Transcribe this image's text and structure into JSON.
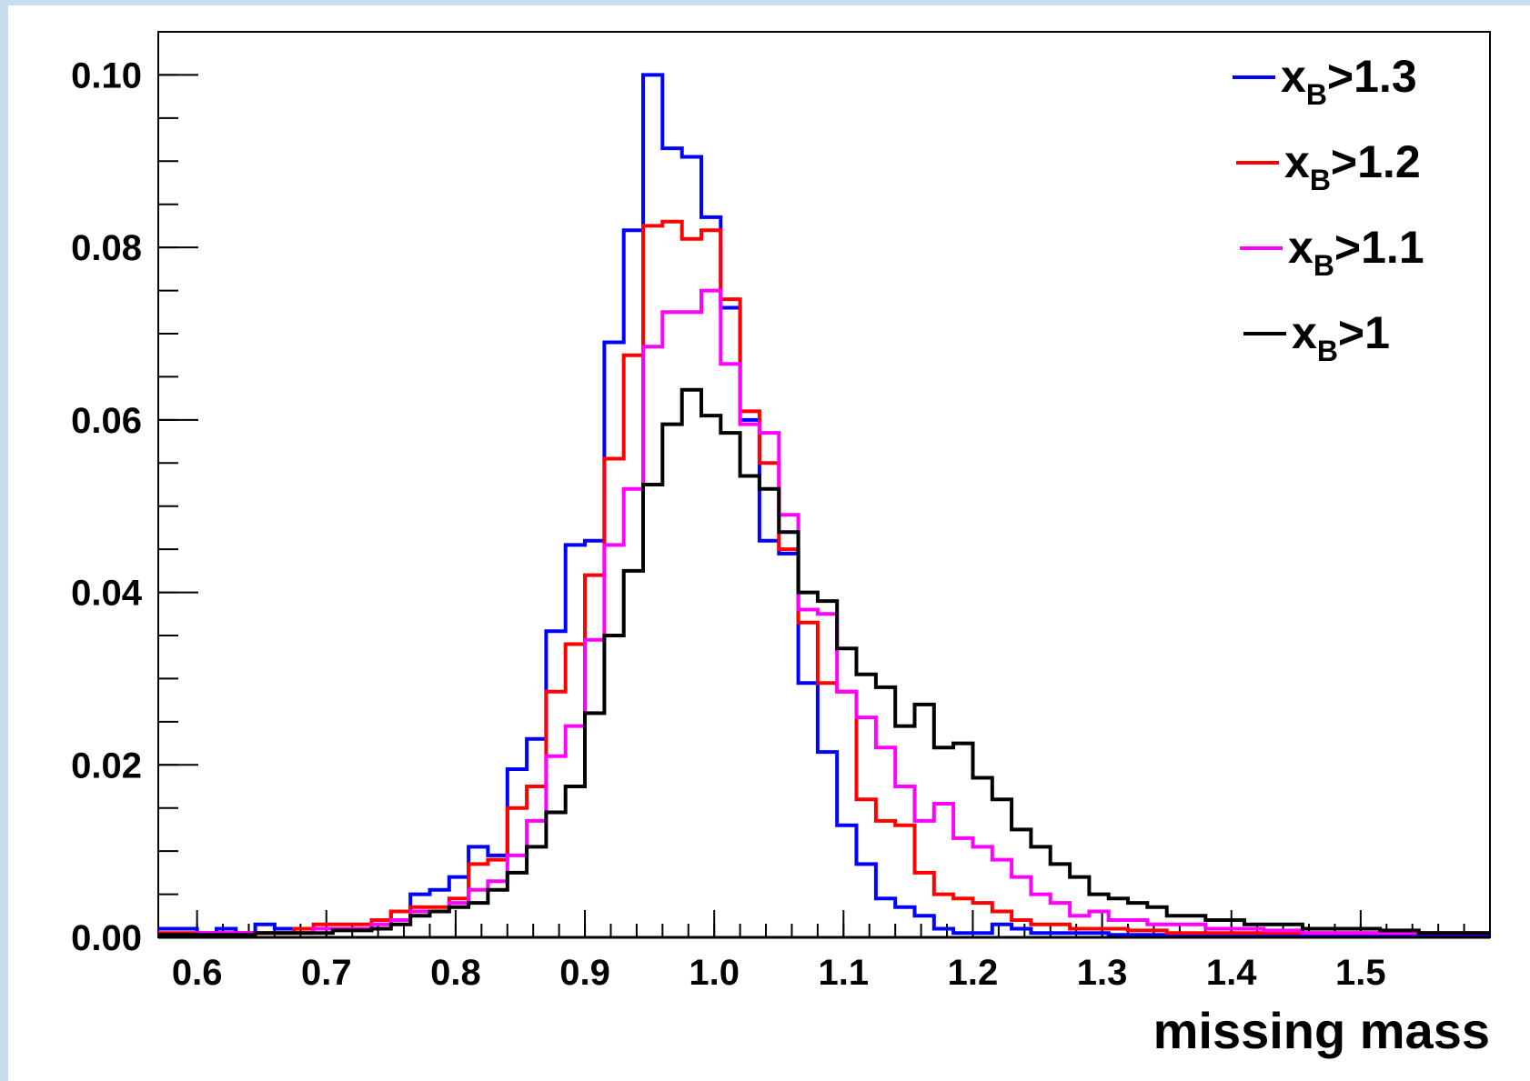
{
  "chart_data": {
    "type": "line",
    "title": "",
    "xlabel": "missing mass",
    "ylabel": "",
    "xlim": [
      0.57,
      1.6
    ],
    "ylim": [
      0.0,
      0.105
    ],
    "x_ticks": [
      "0.6",
      "0.7",
      "0.8",
      "0.9",
      "1.0",
      "1.1",
      "1.2",
      "1.3",
      "1.4",
      "1.5"
    ],
    "y_ticks": [
      "0.00",
      "0.02",
      "0.04",
      "0.06",
      "0.08",
      "0.10"
    ],
    "grid": false,
    "legend_position": "top-right",
    "bin_width": 0.015,
    "bin_start": 0.57,
    "series": [
      {
        "name": "x_B>1.3",
        "legend_main": "x",
        "legend_sub": "B",
        "legend_tail": ">1.3",
        "color": "#0000ff",
        "values": [
          0.001,
          0.001,
          0.0005,
          0.001,
          0.0005,
          0.0015,
          0.001,
          0.001,
          0.001,
          0.001,
          0.001,
          0.002,
          0.003,
          0.005,
          0.0055,
          0.007,
          0.0105,
          0.0095,
          0.0195,
          0.023,
          0.0355,
          0.0455,
          0.046,
          0.069,
          0.082,
          0.1,
          0.0915,
          0.0905,
          0.0835,
          0.073,
          0.06,
          0.046,
          0.0445,
          0.0295,
          0.0215,
          0.013,
          0.0085,
          0.0045,
          0.0035,
          0.0025,
          0.001,
          0.0005,
          0.0005,
          0.0015,
          0.001,
          0.0005,
          0.0005,
          0.0005,
          0.0005,
          0.0003,
          0.0003,
          0.0003,
          0.0003,
          0.0003,
          0.0003,
          0.0003,
          0.0003,
          0.0003,
          0.0003,
          0.0003,
          0.0003,
          0.0003,
          0.0003,
          0.0003,
          0.0003,
          0.0003,
          0.0003,
          0.0003,
          0.0003
        ]
      },
      {
        "name": "x_B>1.2",
        "legend_main": "x",
        "legend_sub": "B",
        "legend_tail": ">1.2",
        "color": "#ff0000",
        "values": [
          0.0005,
          0.0005,
          0.0005,
          0.0005,
          0.0005,
          0.0005,
          0.0005,
          0.001,
          0.0015,
          0.0015,
          0.0015,
          0.002,
          0.003,
          0.0035,
          0.0035,
          0.0045,
          0.0085,
          0.009,
          0.015,
          0.0175,
          0.0285,
          0.034,
          0.042,
          0.0555,
          0.0675,
          0.0825,
          0.083,
          0.081,
          0.082,
          0.074,
          0.061,
          0.055,
          0.045,
          0.0365,
          0.0295,
          0.0285,
          0.016,
          0.0135,
          0.013,
          0.0075,
          0.005,
          0.0045,
          0.004,
          0.003,
          0.002,
          0.0015,
          0.0015,
          0.001,
          0.001,
          0.001,
          0.0008,
          0.0008,
          0.0005,
          0.0005,
          0.0005,
          0.0005,
          0.0005,
          0.0005,
          0.0005,
          0.0005,
          0.0005,
          0.0005,
          0.0005,
          0.0005,
          0.0005,
          0.0005,
          0.0005,
          0.0005,
          0.0005
        ]
      },
      {
        "name": "x_B>1.1",
        "legend_main": "x",
        "legend_sub": "B",
        "legend_tail": ">1.1",
        "color": "#ff00ff",
        "values": [
          0.0003,
          0.0003,
          0.0005,
          0.0005,
          0.0005,
          0.0005,
          0.0005,
          0.0005,
          0.001,
          0.001,
          0.001,
          0.0015,
          0.002,
          0.003,
          0.003,
          0.004,
          0.0055,
          0.0065,
          0.0095,
          0.0135,
          0.021,
          0.0245,
          0.0345,
          0.0455,
          0.052,
          0.0685,
          0.0725,
          0.0725,
          0.075,
          0.0665,
          0.0595,
          0.0585,
          0.049,
          0.038,
          0.0375,
          0.0285,
          0.0255,
          0.022,
          0.0175,
          0.0135,
          0.0155,
          0.0115,
          0.0105,
          0.009,
          0.007,
          0.005,
          0.004,
          0.0025,
          0.003,
          0.002,
          0.002,
          0.0015,
          0.0015,
          0.0015,
          0.001,
          0.001,
          0.001,
          0.0008,
          0.0008,
          0.0005,
          0.0005,
          0.0005,
          0.0005,
          0.0005,
          0.0005,
          0.0005,
          0.0005,
          0.0005,
          0.0005
        ]
      },
      {
        "name": "x_B>1",
        "legend_main": "x",
        "legend_sub": "B",
        "legend_tail": ">1",
        "color": "#000000",
        "values": [
          0.0003,
          0.0003,
          0.0003,
          0.0003,
          0.0003,
          0.0005,
          0.0005,
          0.0005,
          0.0005,
          0.0008,
          0.0008,
          0.001,
          0.0015,
          0.0025,
          0.003,
          0.0035,
          0.004,
          0.0055,
          0.0075,
          0.0105,
          0.0145,
          0.0175,
          0.026,
          0.035,
          0.0425,
          0.0525,
          0.0595,
          0.0635,
          0.0605,
          0.0585,
          0.0535,
          0.052,
          0.047,
          0.04,
          0.039,
          0.0335,
          0.0305,
          0.029,
          0.0245,
          0.027,
          0.022,
          0.0225,
          0.0185,
          0.016,
          0.0125,
          0.0105,
          0.0085,
          0.007,
          0.005,
          0.0045,
          0.004,
          0.0035,
          0.0025,
          0.0025,
          0.002,
          0.002,
          0.0015,
          0.0015,
          0.0015,
          0.001,
          0.001,
          0.001,
          0.001,
          0.0008,
          0.0008,
          0.0005,
          0.0005,
          0.0005,
          0.0005
        ]
      }
    ]
  },
  "frame_color": "#c8dcf0"
}
